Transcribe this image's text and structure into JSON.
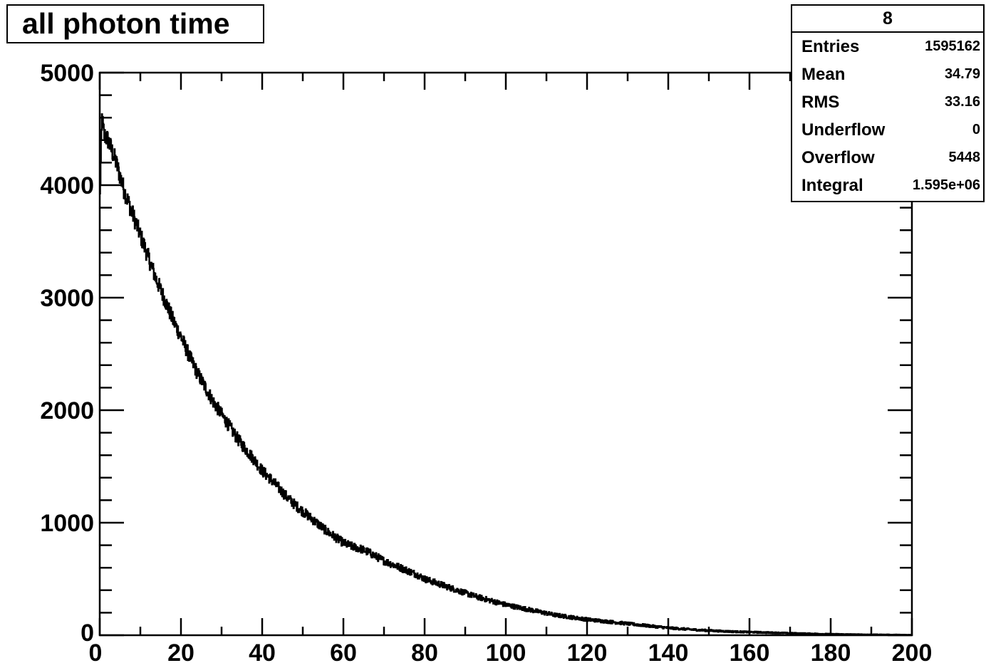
{
  "title": "all photon time",
  "stats": {
    "header": "8",
    "rows": [
      {
        "label": "Entries",
        "value": "1595162"
      },
      {
        "label": "Mean",
        "value": "34.79"
      },
      {
        "label": "RMS",
        "value": "33.16"
      },
      {
        "label": "Underflow",
        "value": "0"
      },
      {
        "label": "Overflow",
        "value": "5448"
      },
      {
        "label": "Integral",
        "value": "1.595e+06"
      }
    ]
  },
  "chart_data": {
    "type": "line",
    "title": "all photon time",
    "xlabel": "",
    "ylabel": "",
    "xlim": [
      0,
      200
    ],
    "ylim": [
      0,
      5000
    ],
    "x_ticks": [
      "0",
      "20",
      "40",
      "60",
      "80",
      "100",
      "120",
      "140",
      "160",
      "180",
      "200"
    ],
    "y_ticks": [
      "0",
      "1000",
      "2000",
      "3000",
      "4000",
      "5000"
    ],
    "grid": false,
    "series": [
      {
        "x": [
          0,
          0.5,
          1,
          2,
          4,
          6,
          8,
          10,
          12,
          14,
          16,
          18,
          20,
          22,
          24,
          26,
          28,
          30,
          32,
          34,
          36,
          38,
          40,
          42,
          44,
          46,
          48,
          50,
          52,
          54,
          56,
          58,
          60,
          62,
          64,
          66,
          68,
          70,
          72,
          74,
          76,
          78,
          80,
          84,
          88,
          92,
          96,
          100,
          104,
          108,
          112,
          116,
          120,
          124,
          128,
          132,
          136,
          140,
          144,
          148,
          152,
          156,
          160,
          164,
          168,
          172,
          176,
          180,
          184,
          188,
          192,
          196,
          200
        ],
        "y": [
          3900,
          4600,
          4450,
          4400,
          4200,
          3950,
          3750,
          3550,
          3350,
          3150,
          2980,
          2800,
          2650,
          2480,
          2330,
          2200,
          2070,
          1960,
          1850,
          1740,
          1650,
          1560,
          1460,
          1390,
          1310,
          1230,
          1160,
          1100,
          1040,
          980,
          920,
          870,
          820,
          790,
          770,
          740,
          700,
          660,
          630,
          600,
          570,
          540,
          500,
          450,
          400,
          350,
          310,
          270,
          240,
          210,
          180,
          160,
          140,
          125,
          110,
          95,
          80,
          65,
          55,
          45,
          38,
          32,
          28,
          24,
          20,
          16,
          13,
          10,
          8,
          6,
          5,
          4,
          3
        ]
      }
    ]
  }
}
